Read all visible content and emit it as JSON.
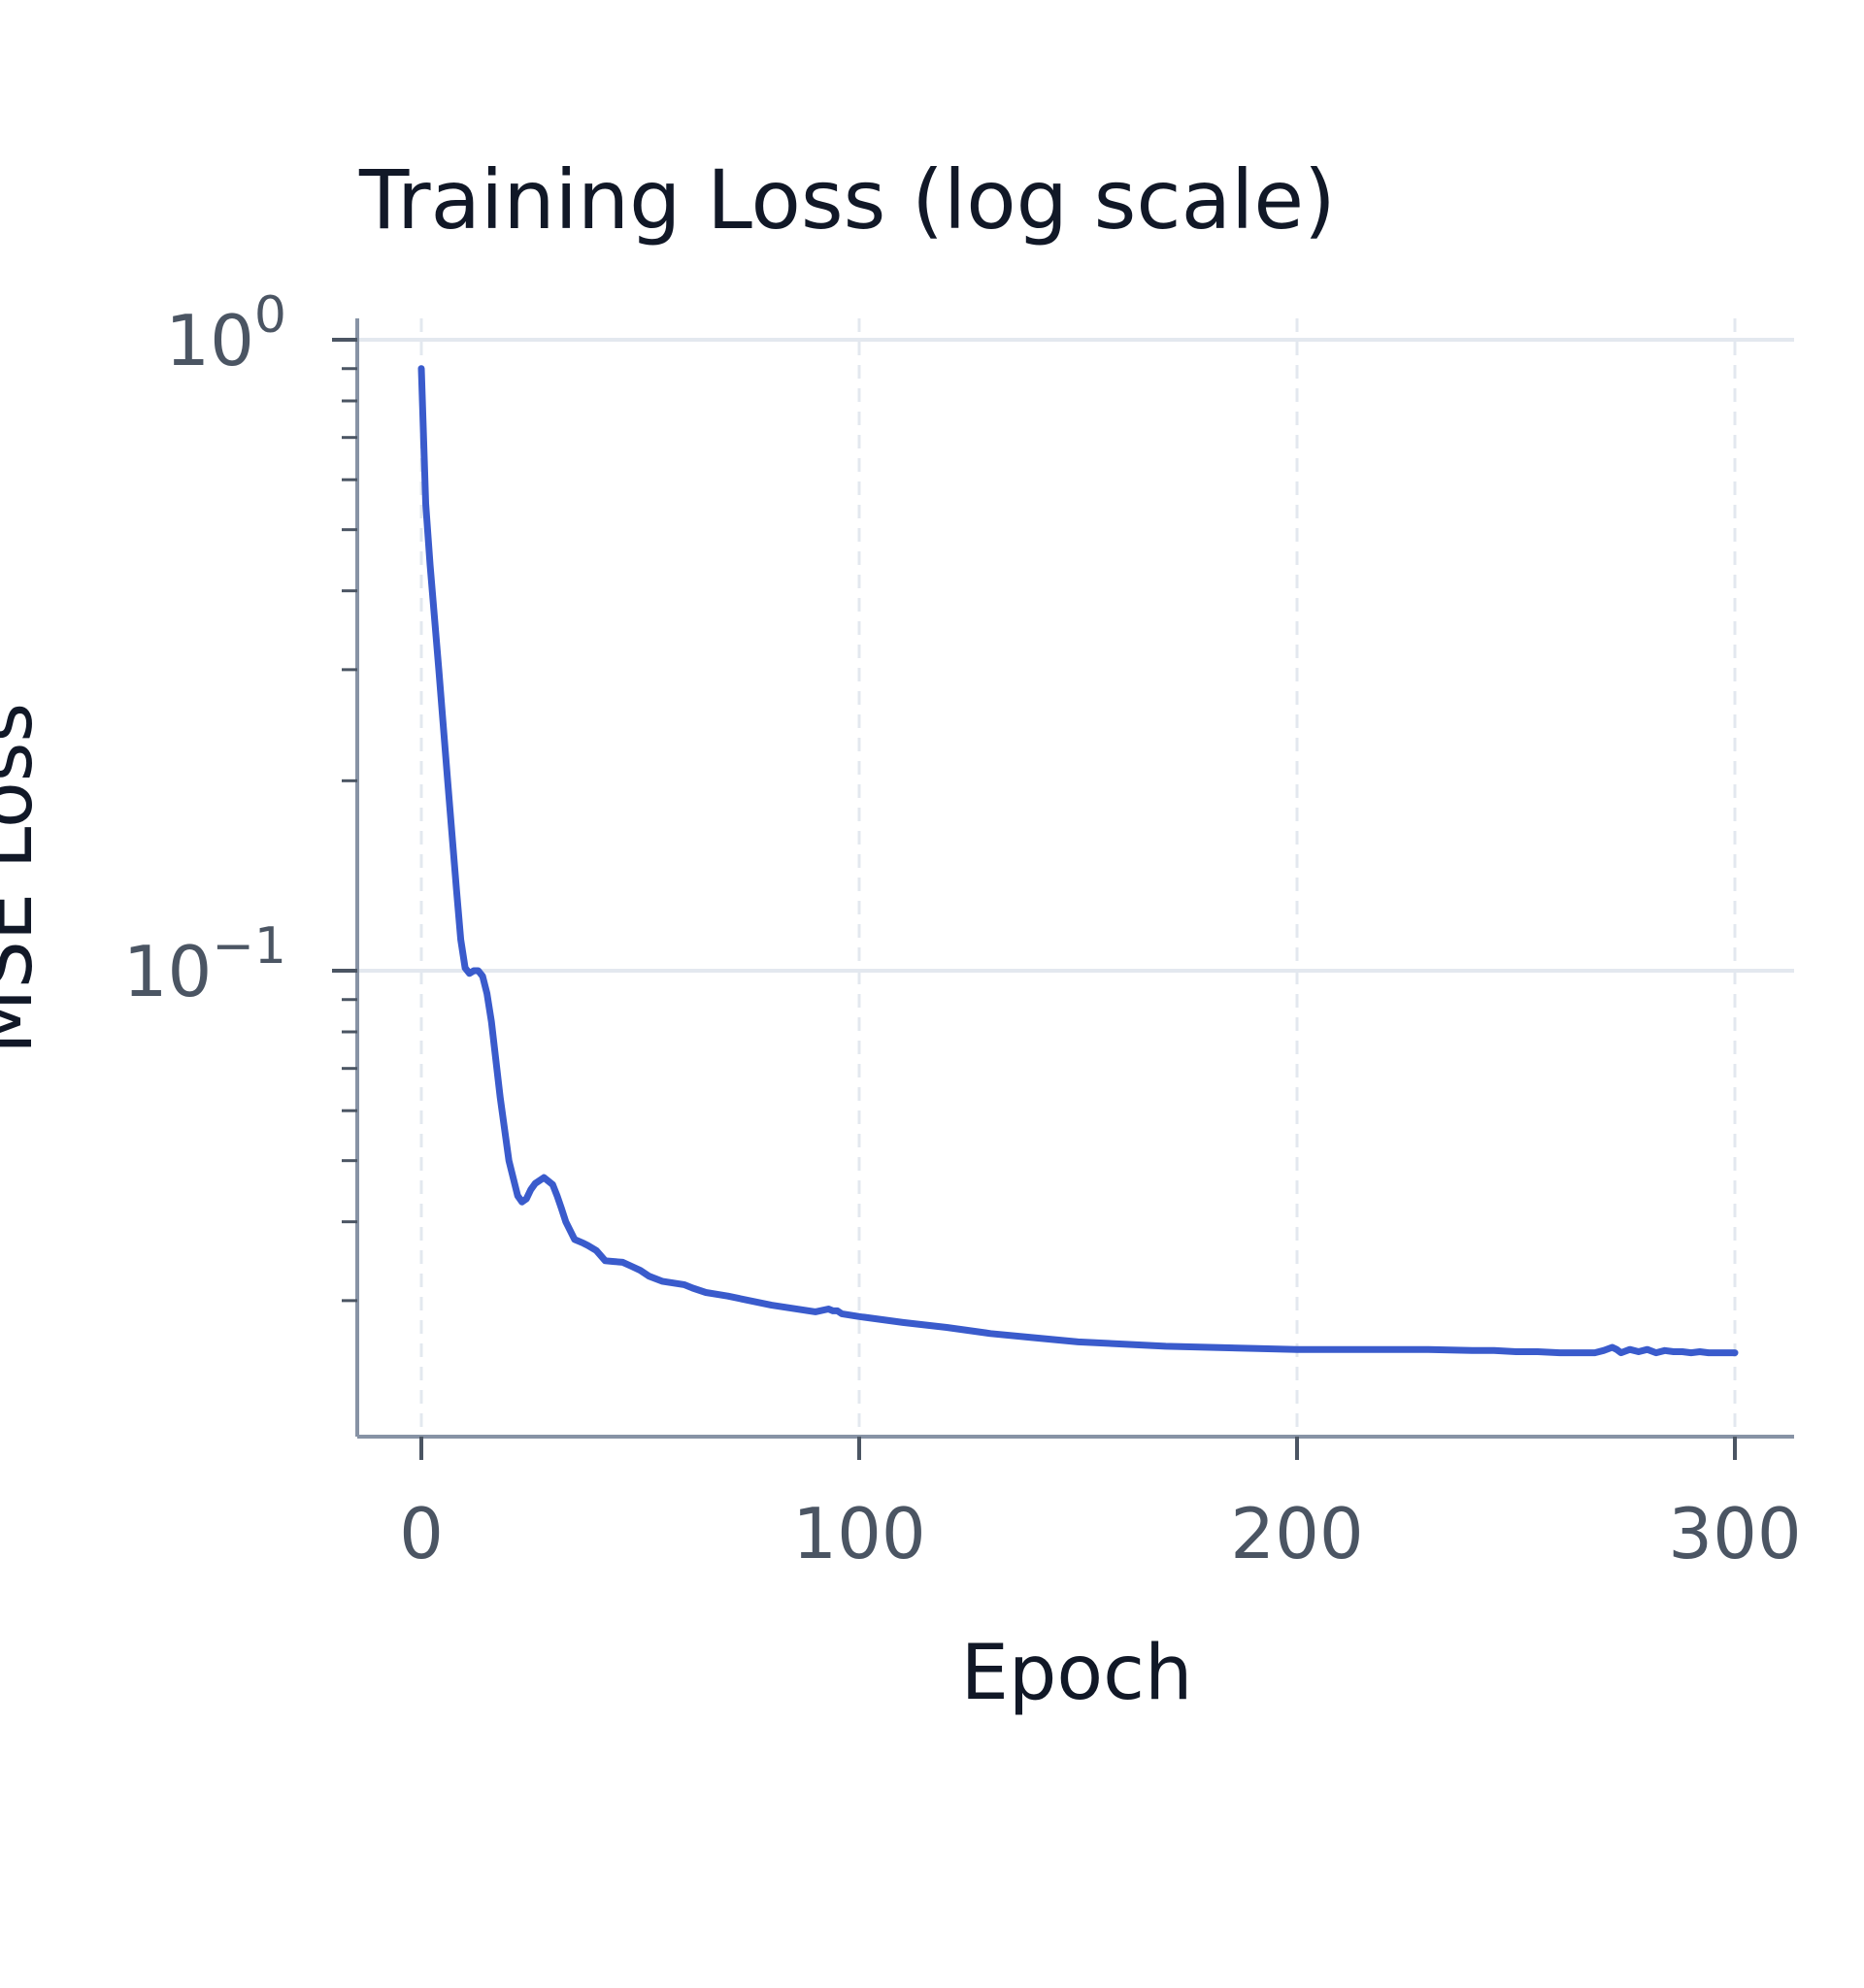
{
  "chart_data": {
    "type": "line",
    "title": "Training Loss (log scale)",
    "xlabel": "Epoch",
    "ylabel": "MSE Loss",
    "xlim": [
      -15,
      315
    ],
    "ylim": [
      0.024,
      1.05
    ],
    "yscale": "log",
    "grid": true,
    "colors": {
      "line": "#3a5bcc",
      "axis": "#8793a5",
      "grid": "#e3e8ef",
      "title": "#111827",
      "tick": "#4b5563"
    },
    "x_ticks": [
      {
        "value": 0,
        "label": "0"
      },
      {
        "value": 100,
        "label": "100"
      },
      {
        "value": 200,
        "label": "200"
      },
      {
        "value": 300,
        "label": "300"
      }
    ],
    "y_ticks": [
      {
        "value": 1.0,
        "base": "10",
        "exp": "0"
      },
      {
        "value": 0.1,
        "base": "10",
        "exp": "−1"
      }
    ],
    "series": [
      {
        "name": "",
        "x": [
          0,
          1,
          2,
          4,
          6,
          8,
          9,
          10,
          11,
          12,
          13,
          14,
          15,
          16,
          18,
          20,
          22,
          23,
          24,
          25,
          26,
          28,
          30,
          31,
          32,
          33,
          35,
          37,
          38,
          40,
          42,
          44,
          46,
          48,
          50,
          52,
          55,
          60,
          62,
          65,
          70,
          80,
          90,
          93,
          94,
          95,
          96,
          100,
          110,
          120,
          130,
          140,
          150,
          160,
          170,
          180,
          190,
          200,
          210,
          220,
          230,
          240,
          245,
          250,
          255,
          260,
          265,
          268,
          270,
          272,
          273,
          274,
          276,
          278,
          280,
          282,
          284,
          286,
          288,
          290,
          292,
          294,
          296,
          298,
          300
        ],
        "y": [
          0.9,
          0.55,
          0.44,
          0.3,
          0.2,
          0.135,
          0.112,
          0.101,
          0.099,
          0.1,
          0.1,
          0.098,
          0.092,
          0.083,
          0.063,
          0.05,
          0.044,
          0.043,
          0.0435,
          0.045,
          0.046,
          0.047,
          0.0458,
          0.044,
          0.042,
          0.04,
          0.0375,
          0.037,
          0.0367,
          0.036,
          0.0347,
          0.0346,
          0.0345,
          0.034,
          0.0335,
          0.0328,
          0.0322,
          0.0318,
          0.0314,
          0.0309,
          0.0305,
          0.0295,
          0.0288,
          0.0291,
          0.0289,
          0.0289,
          0.0286,
          0.0283,
          0.0277,
          0.0272,
          0.0266,
          0.0262,
          0.0258,
          0.0256,
          0.0254,
          0.0253,
          0.0252,
          0.0251,
          0.0251,
          0.0251,
          0.0251,
          0.025,
          0.025,
          0.0249,
          0.0249,
          0.0248,
          0.0248,
          0.0248,
          0.025,
          0.0253,
          0.0251,
          0.0248,
          0.0251,
          0.0249,
          0.0251,
          0.0248,
          0.025,
          0.0249,
          0.0249,
          0.0248,
          0.0249,
          0.0248,
          0.0248,
          0.0248,
          0.0248
        ]
      }
    ]
  }
}
